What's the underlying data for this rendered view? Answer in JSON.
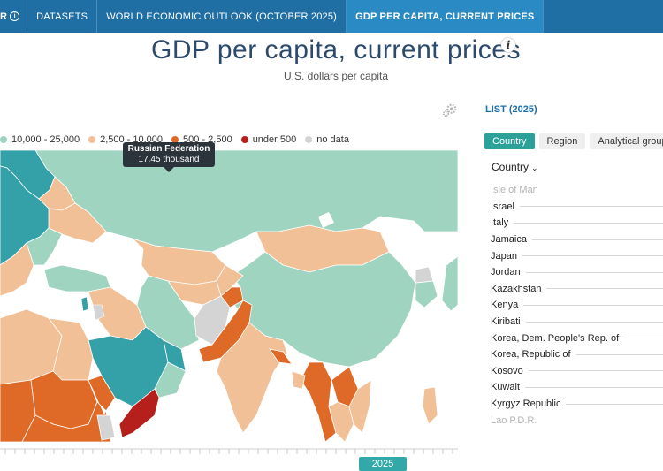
{
  "breadcrumb": {
    "first": "R",
    "items": [
      "DATASETS",
      "WORLD ECONOMIC OUTLOOK (OCTOBER 2025)",
      "GDP PER CAPITA, CURRENT PRICES"
    ]
  },
  "header": {
    "title": "GDP per capita, current prices",
    "info_glyph": "i",
    "subtitle": "U.S. dollars per capita"
  },
  "legend": [
    {
      "label": "10,000 - 25,000",
      "color": "#9fd4c0"
    },
    {
      "label": "2,500 - 10,000",
      "color": "#f2c096"
    },
    {
      "label": "500 - 2,500",
      "color": "#df6a27"
    },
    {
      "label": "under 500",
      "color": "#b5201d"
    },
    {
      "label": "no data",
      "color": "#d4d4d4"
    }
  ],
  "tooltip": {
    "name": "Russian Federation",
    "value": "17.45 thousand"
  },
  "timeline": {
    "year": "2025"
  },
  "panel": {
    "title": "LIST (2025)",
    "tabs": [
      "Country",
      "Region",
      "Analytical group"
    ],
    "active_tab": "Country",
    "sort_label": "Country",
    "items": [
      "Isle of Man",
      "Israel",
      "Italy",
      "Jamaica",
      "Japan",
      "Jordan",
      "Kazakhstan",
      "Kenya",
      "Kiribati",
      "Korea, Dem. People's Rep. of",
      "Korea, Republic of",
      "Kosovo",
      "Kuwait",
      "Kyrgyz Republic",
      "Lao P.D.R."
    ]
  },
  "colors": {
    "top_bar": "#1f6fa5",
    "high": "#34a0a8",
    "mid_high": "#9fd4c0",
    "mid": "#f2c096",
    "low": "#df6a27",
    "very_low": "#b5201d",
    "no_data": "#d4d4d4",
    "accent": "#2ba19a"
  }
}
